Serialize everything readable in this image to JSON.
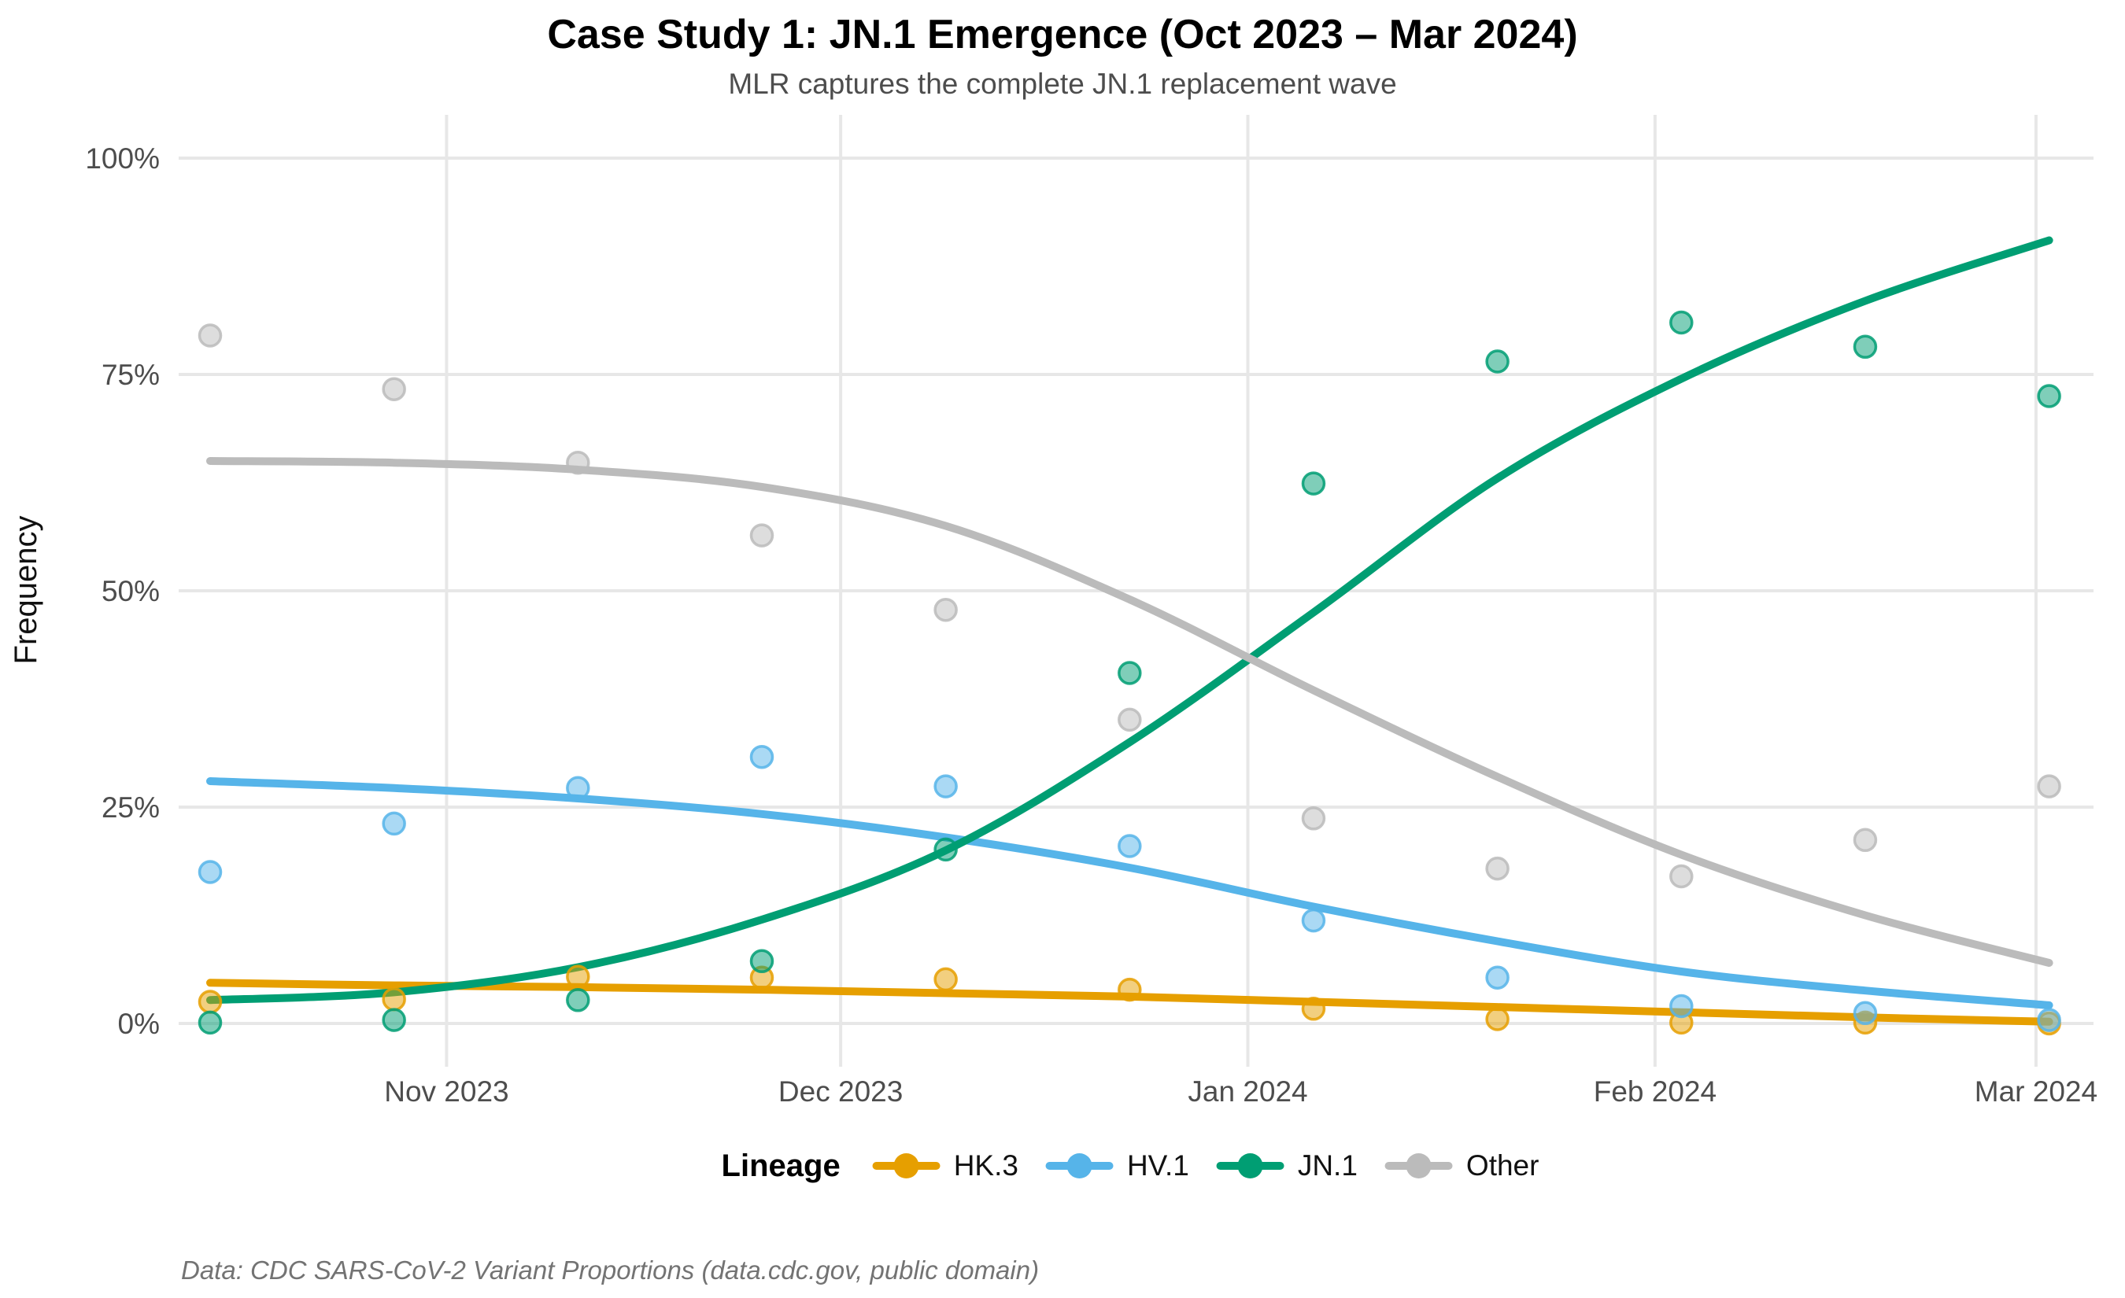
{
  "header": {
    "title": "Case Study 1: JN.1 Emergence (Oct 2023 – Mar 2024)",
    "subtitle": "MLR captures the complete JN.1 replacement wave"
  },
  "legend": {
    "title": "Lineage",
    "position": "bottom"
  },
  "caption": {
    "text": "Data: CDC SARS-CoV-2 Variant Proportions (data.cdc.gov, public domain)"
  },
  "chart_data": {
    "type": "scatter",
    "subtype": "scatter points with smooth MLR trend lines",
    "title": "Case Study 1: JN.1 Emergence (Oct 2023 – Mar 2024)",
    "subtitle": "MLR captures the complete JN.1 replacement wave",
    "xlabel": "",
    "ylabel": "Frequency",
    "ylim": [
      0,
      100
    ],
    "grid": "major-only",
    "legend_position": "bottom",
    "y_ticks": [
      {
        "pct": 0,
        "label": "0%"
      },
      {
        "pct": 25,
        "label": "25%"
      },
      {
        "pct": 50,
        "label": "50%"
      },
      {
        "pct": 75,
        "label": "75%"
      },
      {
        "pct": 100,
        "label": "100%"
      }
    ],
    "x_ticks": [
      {
        "label": "Nov 2023",
        "day": 18
      },
      {
        "label": "Dec 2023",
        "day": 48
      },
      {
        "label": "Jan 2024",
        "day": 79
      },
      {
        "label": "Feb 2024",
        "day": 110
      },
      {
        "label": "Mar 2024",
        "day": 139
      }
    ],
    "point_dates": [
      "2023-10-14",
      "2023-10-28",
      "2023-11-11",
      "2023-11-25",
      "2023-12-09",
      "2023-12-23",
      "2024-01-06",
      "2024-01-20",
      "2024-02-03",
      "2024-02-17",
      "2024-03-02"
    ],
    "point_days": [
      0,
      14,
      28,
      42,
      56,
      70,
      84,
      98,
      112,
      126,
      140
    ],
    "series": [
      {
        "name": "HK.3",
        "color": "#E69F00",
        "points": [
          2.5,
          2.8,
          5.4,
          5.3,
          5.1,
          3.9,
          1.7,
          0.5,
          0.1,
          0.1,
          0.0
        ],
        "trend": [
          4.7,
          4.4,
          4.2,
          3.9,
          3.5,
          3.1,
          2.5,
          1.9,
          1.3,
          0.7,
          0.2
        ]
      },
      {
        "name": "HV.1",
        "color": "#56B4E9",
        "points": [
          17.5,
          23.1,
          27.2,
          30.8,
          27.4,
          20.5,
          11.9,
          5.3,
          2.0,
          1.2,
          0.4
        ],
        "trend": [
          28.0,
          27.2,
          26.0,
          24.2,
          21.5,
          18.0,
          13.5,
          9.5,
          6.0,
          3.8,
          2.1
        ]
      },
      {
        "name": "JN.1",
        "color": "#009E73",
        "points": [
          0.1,
          0.4,
          2.7,
          7.2,
          20.1,
          40.5,
          62.4,
          76.5,
          81.0,
          78.2,
          72.5
        ],
        "trend": [
          2.7,
          3.6,
          6.5,
          12.0,
          20.0,
          32.5,
          47.5,
          63.0,
          74.5,
          83.5,
          90.5
        ]
      },
      {
        "name": "Other",
        "color": "#BBBBBB",
        "points": [
          79.5,
          73.3,
          64.8,
          56.4,
          47.8,
          35.1,
          23.7,
          17.9,
          17.0,
          21.2,
          27.4
        ],
        "trend": [
          65.0,
          64.8,
          64.0,
          62.0,
          57.5,
          49.0,
          38.5,
          28.5,
          19.5,
          12.5,
          7.0
        ]
      }
    ]
  }
}
